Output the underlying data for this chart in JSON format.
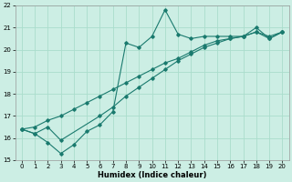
{
  "xlabel": "Humidex (Indice chaleur)",
  "xlim": [
    -0.5,
    20.5
  ],
  "ylim": [
    15,
    22
  ],
  "xticks": [
    0,
    1,
    2,
    3,
    4,
    5,
    6,
    7,
    8,
    9,
    10,
    11,
    12,
    13,
    14,
    15,
    16,
    17,
    18,
    19,
    20
  ],
  "yticks": [
    15,
    16,
    17,
    18,
    19,
    20,
    21,
    22
  ],
  "bg_color": "#cceee4",
  "grid_color": "#aaddcc",
  "line_color": "#1a7a6e",
  "line1_x": [
    0,
    1,
    2,
    3,
    4,
    5,
    6,
    7,
    8,
    9,
    10,
    11,
    12,
    13,
    14,
    15,
    16,
    17,
    18,
    19,
    20
  ],
  "line1_y": [
    16.4,
    16.2,
    15.8,
    15.3,
    15.7,
    16.3,
    16.6,
    17.2,
    20.3,
    20.1,
    20.6,
    21.8,
    20.7,
    20.5,
    20.6,
    20.6,
    20.6,
    20.6,
    21.0,
    20.5,
    20.8
  ],
  "line2_x": [
    0,
    1,
    2,
    3,
    6,
    7,
    8,
    9,
    10,
    11,
    12,
    13,
    14,
    15,
    16,
    17,
    18,
    19,
    20
  ],
  "line2_y": [
    16.4,
    16.2,
    16.5,
    15.9,
    17.0,
    17.4,
    17.9,
    18.3,
    18.7,
    19.1,
    19.5,
    19.8,
    20.1,
    20.3,
    20.5,
    20.6,
    20.8,
    20.5,
    20.8
  ],
  "line3_x": [
    0,
    1,
    2,
    3,
    4,
    5,
    6,
    7,
    8,
    9,
    10,
    11,
    12,
    13,
    14,
    15,
    16,
    17,
    18,
    19,
    20
  ],
  "line3_y": [
    16.4,
    16.5,
    16.8,
    17.0,
    17.3,
    17.6,
    17.9,
    18.2,
    18.5,
    18.8,
    19.1,
    19.4,
    19.6,
    19.9,
    20.2,
    20.4,
    20.5,
    20.6,
    20.8,
    20.6,
    20.8
  ],
  "xlabel_fontsize": 6,
  "tick_fontsize": 5,
  "linewidth": 0.8,
  "markersize": 1.8
}
